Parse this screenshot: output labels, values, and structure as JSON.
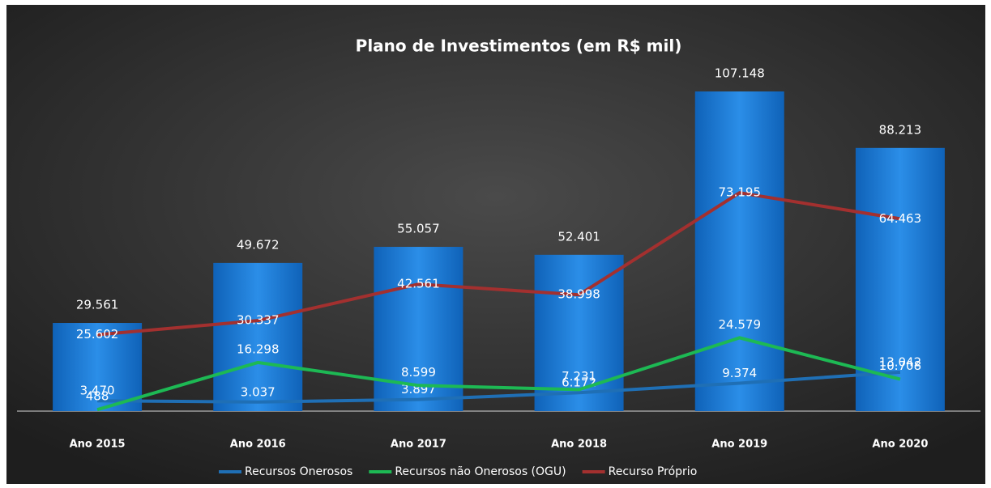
{
  "chart_data": {
    "type": "bar-line",
    "title": "Plano de Investimentos (em R$ mil)",
    "categories": [
      "Ano 2015",
      "Ano 2016",
      "Ano 2017",
      "Ano 2018",
      "Ano 2019",
      "Ano 2020"
    ],
    "series": [
      {
        "type": "bar",
        "color": "#1a7fd8",
        "label_color": "#ffffff",
        "values": [
          29561,
          49672,
          55057,
          52401,
          107148,
          88213
        ],
        "value_labels": [
          "29.561",
          "49.672",
          "55.057",
          "52.401",
          "107.148",
          "88.213"
        ]
      },
      {
        "type": "line",
        "name": "Recursos Onerosos",
        "color": "#1f6fb5",
        "label_color": "#ffffff",
        "values": [
          3470,
          3037,
          3897,
          6172,
          9374,
          13042
        ],
        "value_labels": [
          "3.470",
          "3.037",
          "3.897",
          "6.172",
          "9.374",
          "13.042"
        ]
      },
      {
        "type": "line",
        "name": "Recursos não Onerosos (OGU)",
        "color": "#1db954",
        "label_color": "#d9ec8c",
        "values": [
          488,
          16298,
          8599,
          7231,
          24579,
          10708
        ],
        "value_labels": [
          "488",
          "16.298",
          "8.599",
          "7.231",
          "24.579",
          "10.708"
        ]
      },
      {
        "type": "line",
        "name": "Recurso Próprio",
        "color": "#a3302f",
        "label_color": "#f5cfcc",
        "values": [
          25602,
          30337,
          42561,
          38998,
          73195,
          64463
        ],
        "value_labels": [
          "25.602",
          "30.337",
          "42.561",
          "38.998",
          "73.195",
          "64.463"
        ]
      }
    ]
  }
}
